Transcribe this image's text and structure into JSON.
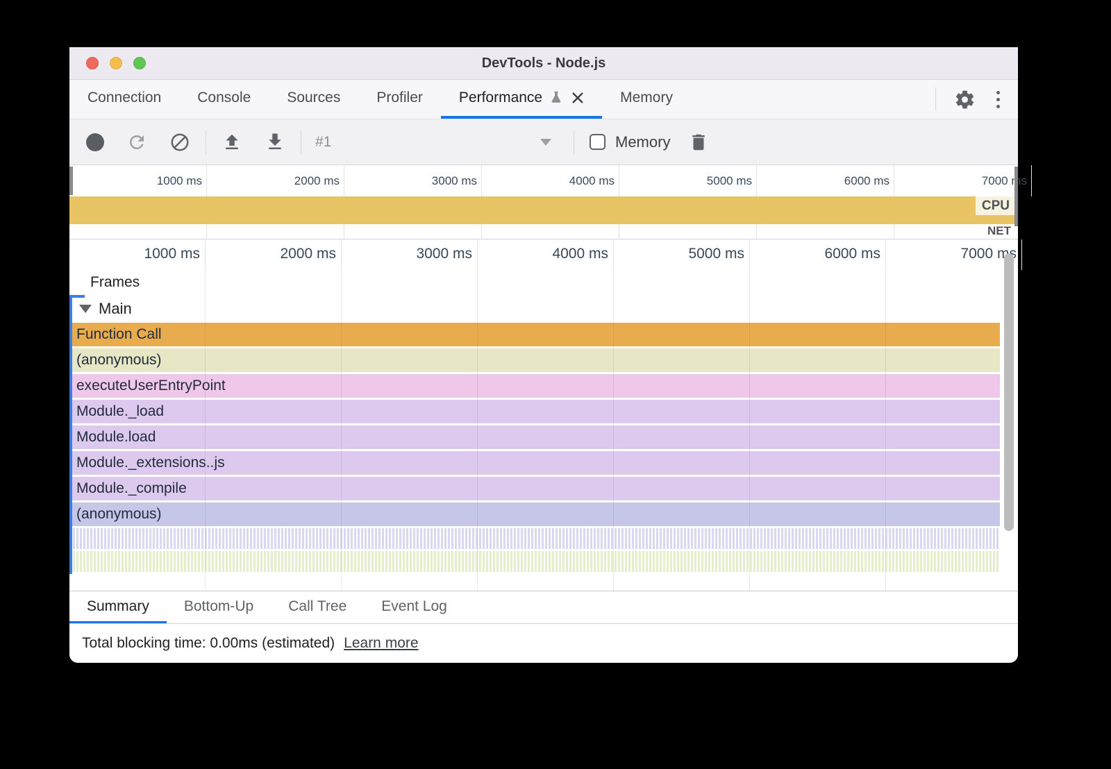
{
  "window": {
    "title": "DevTools - Node.js"
  },
  "tab_bar": {
    "tabs": [
      {
        "label": "Connection",
        "active": false,
        "flask": false,
        "closable": false
      },
      {
        "label": "Console",
        "active": false,
        "flask": false,
        "closable": false
      },
      {
        "label": "Sources",
        "active": false,
        "flask": false,
        "closable": false
      },
      {
        "label": "Profiler",
        "active": false,
        "flask": false,
        "closable": false
      },
      {
        "label": "Performance",
        "active": true,
        "flask": true,
        "closable": true
      },
      {
        "label": "Memory",
        "active": false,
        "flask": false,
        "closable": false
      }
    ]
  },
  "toolbar": {
    "session_label": "#1",
    "memory_checkbox_label": "Memory",
    "memory_checked": false
  },
  "timeline": {
    "ticks": [
      "1000 ms",
      "2000 ms",
      "3000 ms",
      "4000 ms",
      "5000 ms",
      "6000 ms",
      "7000 ms"
    ],
    "cpu_label": "CPU",
    "net_label": "NET"
  },
  "flame": {
    "frames_label": "Frames",
    "main_label": "Main",
    "rows": [
      {
        "label": "Function Call",
        "color": "#e8ab4e",
        "striped": false
      },
      {
        "label": "(anonymous)",
        "color": "#e7e7c6",
        "striped": false
      },
      {
        "label": "executeUserEntryPoint",
        "color": "#eec7e9",
        "striped": false
      },
      {
        "label": "Module._load",
        "color": "#ddc8ee",
        "striped": false
      },
      {
        "label": "Module.load",
        "color": "#ddc8ee",
        "striped": false
      },
      {
        "label": "Module._extensions..js",
        "color": "#ddc8ee",
        "striped": false
      },
      {
        "label": "Module._compile",
        "color": "#ddc8ee",
        "striped": false
      },
      {
        "label": "(anonymous)",
        "color": "#c6c6e9",
        "striped": false
      },
      {
        "label": "",
        "color": "#d8d8f1",
        "striped": true
      },
      {
        "label": "",
        "color": "#e5eecb",
        "striped": true
      }
    ]
  },
  "bottom_tabs": [
    {
      "label": "Summary",
      "active": true
    },
    {
      "label": "Bottom-Up",
      "active": false
    },
    {
      "label": "Call Tree",
      "active": false
    },
    {
      "label": "Event Log",
      "active": false
    }
  ],
  "status": {
    "text": "Total blocking time: 0.00ms (estimated)",
    "link_label": "Learn more"
  },
  "colors": {
    "accent": "#1a73e8",
    "cpu_band": "#e9c464",
    "selection": "#3e7de0"
  }
}
